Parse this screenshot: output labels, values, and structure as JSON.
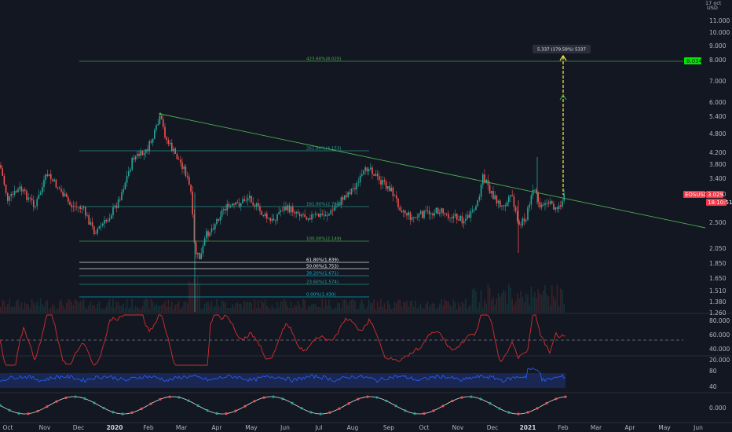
{
  "app": {
    "currency": "USD",
    "header_partial": "17 oct"
  },
  "price_axis": {
    "labels": [
      "11.000",
      "10.000",
      "9.000",
      "8.000",
      "7.000",
      "6.000",
      "5.400",
      "4.800",
      "4.200",
      "3.800",
      "3.400",
      "3.000",
      "2.500",
      "2.050",
      "1.850",
      "1.650",
      "1.510",
      "1.380",
      "1.260"
    ]
  },
  "time_axis": {
    "labels": [
      "Oct",
      "Nov",
      "Dec",
      "2020",
      "Feb",
      "Mar",
      "Apr",
      "May",
      "Jun",
      "Jul",
      "Aug",
      "Sep",
      "Oct",
      "Nov",
      "Dec",
      "2021",
      "Feb",
      "Mar",
      "Apr",
      "May",
      "Jun"
    ],
    "bold": [
      "2020",
      "2021"
    ]
  },
  "fib_levels": [
    {
      "label": "423.60%(8.025)",
      "color": "#4caf50"
    },
    {
      "label": "261.80%(4.153)",
      "color": "#26a69a"
    },
    {
      "label": "161.80%(2.764)",
      "color": "#26a69a"
    },
    {
      "label": "100.00%(2.149)",
      "color": "#4caf50"
    },
    {
      "label": "61.80%(1.839)",
      "color": "#ffffff"
    },
    {
      "label": "50.00%(1.753)",
      "color": "#ffffff"
    },
    {
      "label": "38.20%(1.671)",
      "color": "#00bcd4"
    },
    {
      "label": "23.60%(1.574)",
      "color": "#26a69a"
    },
    {
      "label": "0.00%(1.430)",
      "color": "#00bcd4"
    }
  ],
  "measure": {
    "label": "5.337 (179.58%) 5337"
  },
  "price_tags": {
    "target": {
      "value": "8.034",
      "color": "#00e600"
    },
    "symbol": {
      "name": "EOSUSD",
      "value": "3.029",
      "color": "#f23645"
    },
    "countdown": "18:10:51"
  },
  "rsi_panel": {
    "labels": [
      "80.000",
      "60.000",
      "40.000",
      "20.000"
    ]
  },
  "vol_panel": {
    "labels": [
      "80",
      "40"
    ]
  },
  "osc_panel": {
    "labels": [
      "0.000"
    ]
  },
  "colors": {
    "up": "#26a69a",
    "down": "#ef5350",
    "trend": "#4caf50",
    "measure": "#ffeb3b",
    "rsi": "#d32f2f",
    "vol": "#2962ff",
    "osc": "#e0e0e0",
    "bg": "#131722",
    "grid": "#1e222d"
  }
}
